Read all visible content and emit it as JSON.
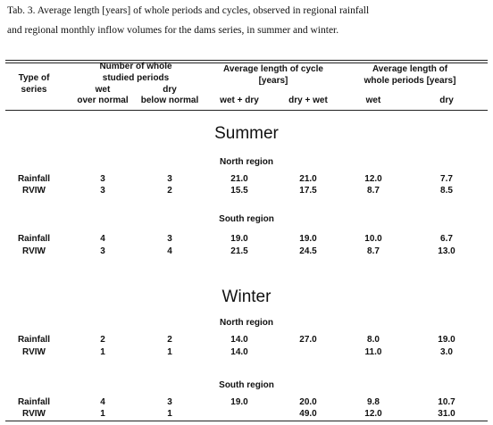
{
  "caption": [
    "Tab. 3. Average length [years] of whole periods and cycles, observed in regional rainfall",
    "and regional monthly inflow volumes for the dams series, in summer and winter."
  ],
  "table": {
    "header": {
      "type": [
        "Type of",
        "series"
      ],
      "groups": [
        {
          "label": [
            "Number of whole",
            "studied periods"
          ],
          "columns": [
            {
              "top": "wet",
              "bottom": "over normal"
            },
            {
              "top": "dry",
              "bottom": "below normal"
            }
          ]
        },
        {
          "label": [
            "Average length of cycle",
            "[years]"
          ],
          "columns": [
            {
              "bottom": "wet  +  dry"
            },
            {
              "bottom": "dry  +  wet"
            }
          ]
        },
        {
          "label": [
            "Average length of",
            "whole periods [years]"
          ],
          "columns": [
            {
              "bottom": "wet"
            },
            {
              "bottom": "dry"
            }
          ]
        }
      ]
    },
    "sections": [
      {
        "season": "Summer",
        "regions": [
          {
            "name": "North region",
            "rows": [
              [
                "Rainfall",
                "3",
                "3",
                "21.0",
                "21.0",
                "12.0",
                "7.7"
              ],
              [
                "RVIW",
                "3",
                "2",
                "15.5",
                "17.5",
                "8.7",
                "8.5"
              ]
            ]
          },
          {
            "name": "South region",
            "rows": [
              [
                "Rainfall",
                "4",
                "3",
                "19.0",
                "19.0",
                "10.0",
                "6.7"
              ],
              [
                "RVIW",
                "3",
                "4",
                "21.5",
                "24.5",
                "8.7",
                "13.0"
              ]
            ]
          }
        ]
      },
      {
        "season": "Winter",
        "regions": [
          {
            "name": "North region",
            "rows": [
              [
                "Rainfall",
                "2",
                "2",
                "14.0",
                "27.0",
                "8.0",
                "19.0"
              ],
              [
                "RVIW",
                "1",
                "1",
                "14.0",
                null,
                "11.0",
                "3.0"
              ]
            ]
          },
          {
            "name": "South region",
            "rows": [
              [
                "Rainfall",
                "4",
                "3",
                "19.0",
                "20.0",
                "9.8",
                "10.7"
              ],
              [
                "RVIW",
                "1",
                "1",
                null,
                "49.0",
                "12.0",
                "31.0"
              ]
            ]
          }
        ]
      }
    ]
  }
}
